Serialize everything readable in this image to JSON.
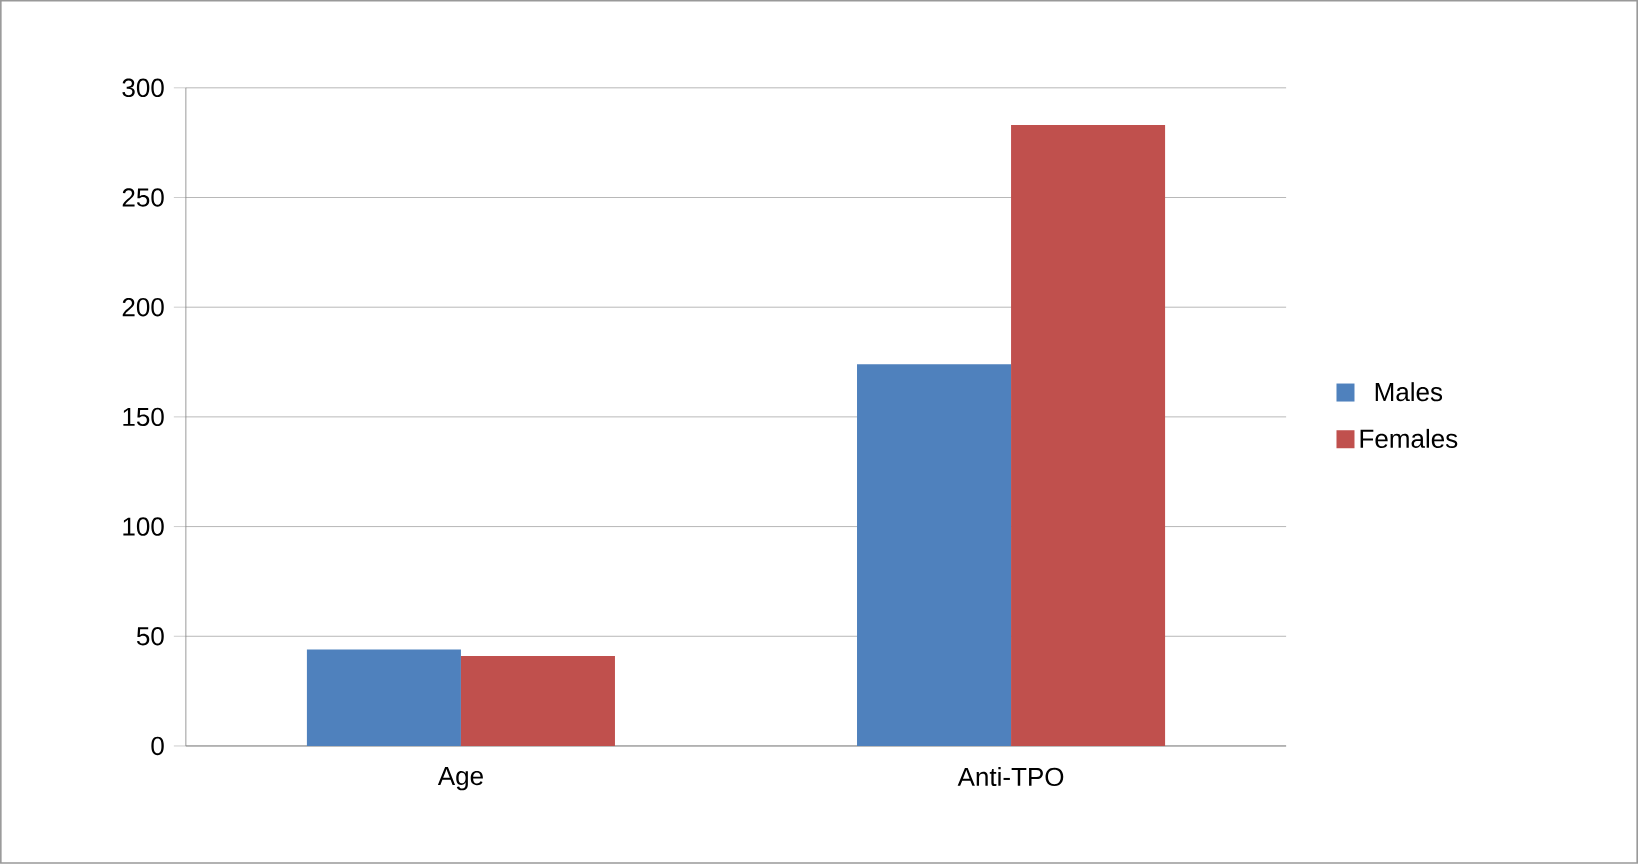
{
  "chart_data": {
    "type": "bar",
    "categories": [
      "Age",
      "Anti-TPO"
    ],
    "series": [
      {
        "name": "Males",
        "color": "#4f81bd",
        "values": [
          44,
          174
        ]
      },
      {
        "name": "Females",
        "color": "#c0504d",
        "values": [
          41,
          283
        ]
      }
    ],
    "ylim": [
      0,
      300
    ],
    "yticks": [
      0,
      50,
      100,
      150,
      200,
      250,
      300
    ],
    "grid": "y",
    "legend": "right"
  }
}
